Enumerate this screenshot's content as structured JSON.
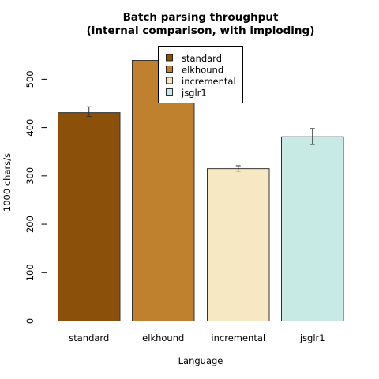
{
  "chart_data": {
    "type": "bar",
    "title": [
      "Batch parsing throughput",
      "(internal comparison, with imploding)"
    ],
    "xlabel": "Language",
    "ylabel": "1000 chars/s",
    "categories": [
      "standard",
      "elkhound",
      "incremental",
      "jsglr1"
    ],
    "values": [
      431,
      539,
      315,
      381
    ],
    "error_bars": [
      [
        423,
        443
      ],
      [
        null,
        null
      ],
      [
        310,
        321
      ],
      [
        365,
        398
      ]
    ],
    "colors": [
      "#8B5009",
      "#BF812D",
      "#F6E8C3",
      "#C7EAE5"
    ],
    "ylim": [
      0,
      539
    ],
    "yticks": [
      0,
      100,
      200,
      300,
      400,
      500
    ],
    "grid": false,
    "legend": {
      "placement": "top-center",
      "entries": [
        "standard",
        "elkhound",
        "incremental",
        "jsglr1"
      ]
    }
  }
}
